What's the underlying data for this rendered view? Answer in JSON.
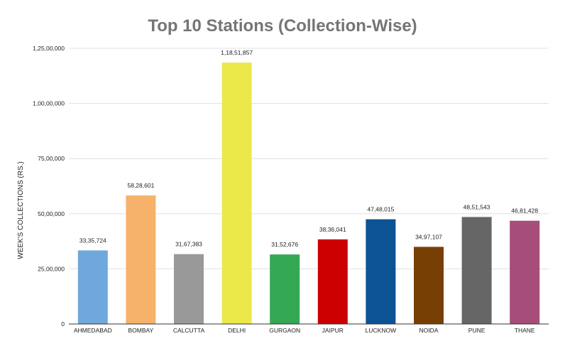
{
  "chart_data": {
    "type": "bar",
    "title": "Top 10 Stations (Collection-Wise)",
    "xlabel": "",
    "ylabel": "WEEK'S COLLECTIONS (RS.)",
    "ylim": [
      0,
      12500000
    ],
    "yticks": [
      0,
      2500000,
      5000000,
      7500000,
      10000000,
      12500000
    ],
    "ytick_labels": [
      "0",
      "25,00,000",
      "50,00,000",
      "75,00,000",
      "1,00,00,000",
      "1,25,00,000"
    ],
    "grid": true,
    "legend": "none",
    "categories": [
      "AHMEDABAD",
      "BOMBAY",
      "CALCUTTA",
      "DELHI",
      "GURGAON",
      "JAIPUR",
      "LUCKNOW",
      "NOIDA",
      "PUNE",
      "THANE"
    ],
    "values": [
      3335724,
      5828601,
      3167383,
      11851857,
      3152676,
      3836041,
      4748015,
      3497107,
      4851543,
      4681428
    ],
    "value_labels": [
      "33,35,724",
      "58,28,601",
      "31,67,383",
      "1,18,51,857",
      "31,52,676",
      "38,36,041",
      "47,48,015",
      "34,97,107",
      "48,51,543",
      "46,81,428"
    ],
    "colors": [
      "#6fa8dc",
      "#f6b26b",
      "#999999",
      "#ebe84a",
      "#34a853",
      "#cc0000",
      "#0b5394",
      "#783f04",
      "#666666",
      "#a64d79"
    ]
  }
}
